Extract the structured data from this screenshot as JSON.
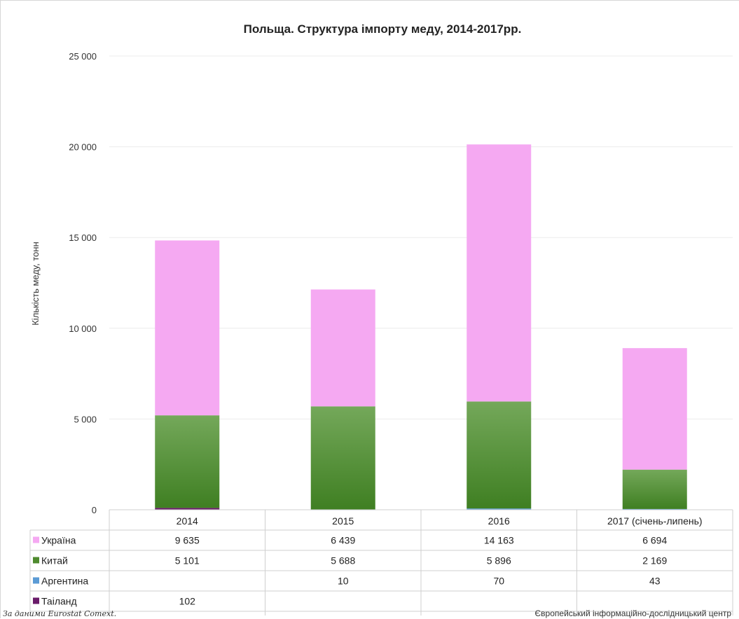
{
  "chart_data": {
    "type": "bar",
    "stacked": true,
    "title": "Польща. Структура імпорту меду, 2014-2017рр.",
    "ylabel": "Кількість меду, тонн",
    "xlabel": "",
    "ylim": [
      0,
      25000
    ],
    "y_ticks": [
      {
        "value": 0,
        "label": "0"
      },
      {
        "value": 5000,
        "label": "5 000"
      },
      {
        "value": 10000,
        "label": "10 000"
      },
      {
        "value": 15000,
        "label": "15 000"
      },
      {
        "value": 20000,
        "label": "20 000"
      },
      {
        "value": 25000,
        "label": "25 000"
      }
    ],
    "grid": true,
    "legend_placement": "data-table",
    "categories": [
      "2014",
      "2015",
      "2016",
      "2017 (січень-липень)"
    ],
    "series": [
      {
        "name": "Україна",
        "color": "#f5a9f2",
        "values": [
          9635,
          6439,
          14163,
          6694
        ],
        "labels": [
          "9 635",
          "6 439",
          "14 163",
          "6 694"
        ]
      },
      {
        "name": "Китай",
        "color": "#4e8a2e",
        "values": [
          5101,
          5688,
          5896,
          2169
        ],
        "labels": [
          "5 101",
          "5 688",
          "5 896",
          "2 169"
        ]
      },
      {
        "name": "Аргентина",
        "color": "#5b9bd5",
        "values": [
          0,
          10,
          70,
          43
        ],
        "labels": [
          "",
          "10",
          "70",
          "43"
        ]
      },
      {
        "name": "Таіланд",
        "color": "#6a1b6a",
        "values": [
          102,
          0,
          0,
          0
        ],
        "labels": [
          "102",
          "",
          "",
          ""
        ]
      }
    ]
  },
  "footer": {
    "note": "За даними Eurostat Comext.",
    "source": "Європейський інформаційно-дослідницький центр"
  }
}
